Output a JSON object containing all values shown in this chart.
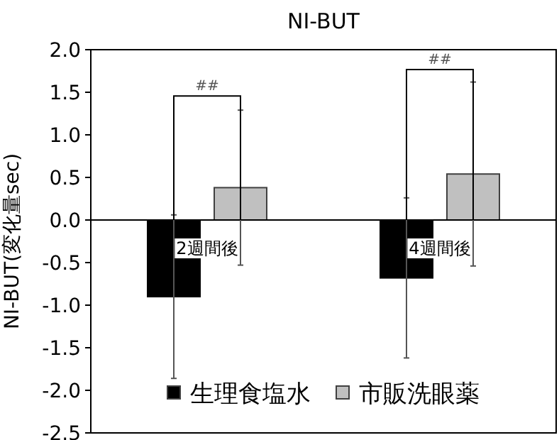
{
  "chart_data": {
    "type": "bar",
    "title": "NI-BUT",
    "ylabel": "NI-BUT(変化量sec)",
    "categories": [
      "2週間後",
      "4週間後"
    ],
    "series": [
      {
        "name": "生理食塩水",
        "color": "#000000",
        "values": [
          -0.9,
          -0.68
        ],
        "errors": [
          0.96,
          0.94
        ]
      },
      {
        "name": "市販洗眼薬",
        "color": "#c0c0c0",
        "values": [
          0.38,
          0.54
        ],
        "errors": [
          0.91,
          1.08
        ]
      }
    ],
    "ylim": [
      -2.5,
      2
    ],
    "yticks": [
      {
        "value": -2.5,
        "label": "-2.5"
      },
      {
        "value": -2,
        "label": "-2.0"
      },
      {
        "value": -1.5,
        "label": "-1.5"
      },
      {
        "value": -1,
        "label": "-1.0"
      },
      {
        "value": -0.5,
        "label": "-0.5"
      },
      {
        "value": 0,
        "label": "0.0"
      },
      {
        "value": 0.5,
        "label": "0.5"
      },
      {
        "value": 1,
        "label": "1.0"
      },
      {
        "value": 1.5,
        "label": "1.5"
      },
      {
        "value": 2,
        "label": "2.0"
      }
    ],
    "annotations": [
      "##",
      "##"
    ],
    "legend": "bottom",
    "grid": false
  }
}
